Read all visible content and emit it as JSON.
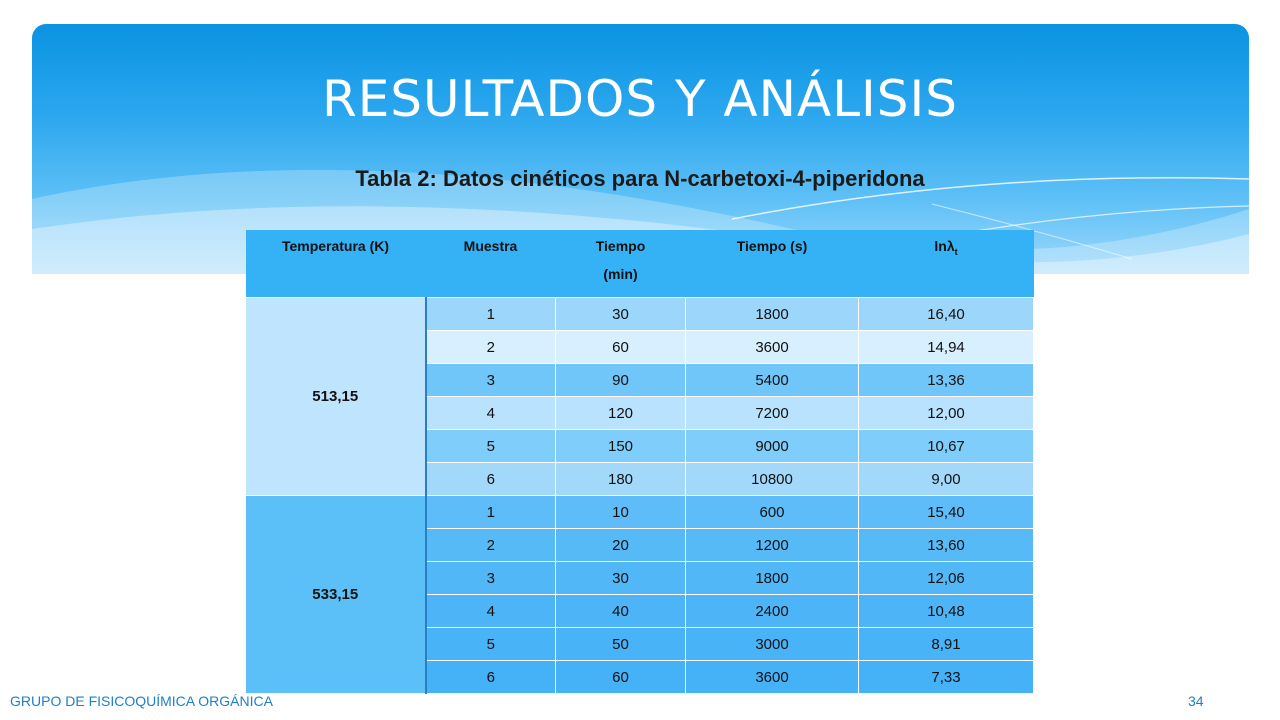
{
  "title": "RESULTADOS Y ANÁLISIS",
  "caption": "Tabla 2: Datos cinéticos para N-carbetoxi-4-piperidona",
  "table": {
    "headers": {
      "temperatura": "Temperatura (K)",
      "muestra": "Muestra",
      "tiempo_min_l1": "Tiempo",
      "tiempo_min_l2": "(min)",
      "tiempo_s": "Tiempo (s)",
      "ln_main": "lnλ",
      "ln_sub": "t"
    },
    "groups": [
      {
        "temperature": "513,15",
        "rows": [
          {
            "muestra": "1",
            "tiempo_min": "30",
            "tiempo_s": "1800",
            "ln": "16,40"
          },
          {
            "muestra": "2",
            "tiempo_min": "60",
            "tiempo_s": "3600",
            "ln": "14,94"
          },
          {
            "muestra": "3",
            "tiempo_min": "90",
            "tiempo_s": "5400",
            "ln": "13,36"
          },
          {
            "muestra": "4",
            "tiempo_min": "120",
            "tiempo_s": "7200",
            "ln": "12,00"
          },
          {
            "muestra": "5",
            "tiempo_min": "150",
            "tiempo_s": "9000",
            "ln": "10,67"
          },
          {
            "muestra": "6",
            "tiempo_min": "180",
            "tiempo_s": "10800",
            "ln": "9,00"
          }
        ]
      },
      {
        "temperature": "533,15",
        "rows": [
          {
            "muestra": "1",
            "tiempo_min": "10",
            "tiempo_s": "600",
            "ln": "15,40"
          },
          {
            "muestra": "2",
            "tiempo_min": "20",
            "tiempo_s": "1200",
            "ln": "13,60"
          },
          {
            "muestra": "3",
            "tiempo_min": "30",
            "tiempo_s": "1800",
            "ln": "12,06"
          },
          {
            "muestra": "4",
            "tiempo_min": "40",
            "tiempo_s": "2400",
            "ln": "10,48"
          },
          {
            "muestra": "5",
            "tiempo_min": "50",
            "tiempo_s": "3000",
            "ln": "8,91"
          },
          {
            "muestra": "6",
            "tiempo_min": "60",
            "tiempo_s": "3600",
            "ln": "7,33"
          }
        ]
      }
    ]
  },
  "footer": "GRUPO DE FISICOQUÍMICA ORGÁNICA",
  "page_number": "34",
  "colors": {
    "header_top": "#0a93e2",
    "header_bottom": "#9fd9fb",
    "table_header": "#35b2f6",
    "footer_text": "#1e7fc9"
  }
}
